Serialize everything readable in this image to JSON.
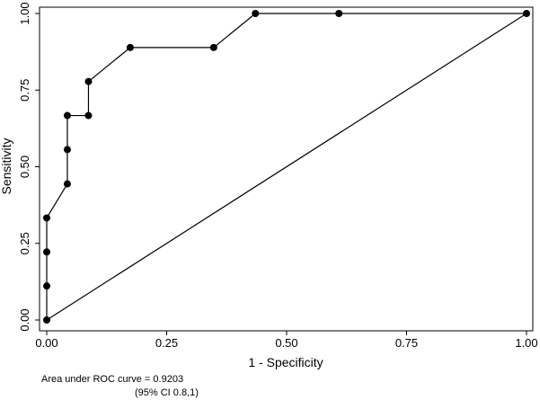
{
  "chart_data": {
    "type": "line",
    "title": "",
    "xlabel": "1 - Specificity",
    "ylabel": "Sensitivity",
    "xlim": [
      0,
      1
    ],
    "ylim": [
      0,
      1
    ],
    "x_ticks": [
      "0.00",
      "0.25",
      "0.50",
      "0.75",
      "1.00"
    ],
    "y_ticks": [
      "0.00",
      "0.25",
      "0.50",
      "0.75",
      "1.00"
    ],
    "grid": false,
    "legend": "none",
    "series": [
      {
        "color": "#000000",
        "points": [
          {
            "x": 0.0,
            "y": 0.0
          },
          {
            "x": 0.0,
            "y": 0.111
          },
          {
            "x": 0.0,
            "y": 0.222
          },
          {
            "x": 0.0,
            "y": 0.333
          },
          {
            "x": 0.043,
            "y": 0.444
          },
          {
            "x": 0.043,
            "y": 0.556
          },
          {
            "x": 0.043,
            "y": 0.667
          },
          {
            "x": 0.087,
            "y": 0.667
          },
          {
            "x": 0.087,
            "y": 0.778
          },
          {
            "x": 0.174,
            "y": 0.889
          },
          {
            "x": 0.348,
            "y": 0.889
          },
          {
            "x": 0.435,
            "y": 1.0
          },
          {
            "x": 0.609,
            "y": 1.0
          },
          {
            "x": 1.0,
            "y": 1.0
          }
        ]
      }
    ],
    "reference_line": {
      "from": [
        0,
        0
      ],
      "to": [
        1,
        1
      ],
      "color": "#000000"
    },
    "annotations": [
      "Area under ROC curve = 0.9203",
      "(95% CI 0.8,1)"
    ]
  }
}
